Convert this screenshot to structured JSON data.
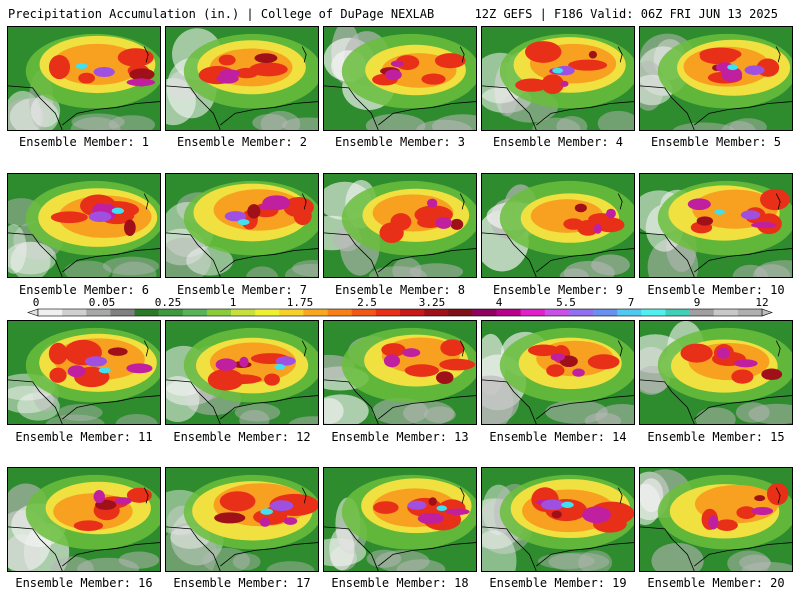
{
  "header": {
    "left_title": "Precipitation Accumulation (in.) | College of DuPage NEXLAB",
    "right_title": "12Z GEFS | F186 Valid: 06Z FRI JUN 13 2025"
  },
  "panels": [
    {
      "caption": "Ensemble Member: 1",
      "intensity": 0.78
    },
    {
      "caption": "Ensemble Member: 2",
      "intensity": 0.62
    },
    {
      "caption": "Ensemble Member: 3",
      "intensity": 0.45
    },
    {
      "caption": "Ensemble Member: 4",
      "intensity": 0.7
    },
    {
      "caption": "Ensemble Member: 5",
      "intensity": 0.72
    },
    {
      "caption": "Ensemble Member: 6",
      "intensity": 0.85
    },
    {
      "caption": "Ensemble Member: 7",
      "intensity": 0.8
    },
    {
      "caption": "Ensemble Member: 8",
      "intensity": 0.58
    },
    {
      "caption": "Ensemble Member: 9",
      "intensity": 0.4
    },
    {
      "caption": "Ensemble Member: 10",
      "intensity": 0.68
    },
    {
      "caption": "Ensemble Member: 11",
      "intensity": 0.82
    },
    {
      "caption": "Ensemble Member: 12",
      "intensity": 0.7
    },
    {
      "caption": "Ensemble Member: 13",
      "intensity": 0.52
    },
    {
      "caption": "Ensemble Member: 14",
      "intensity": 0.5
    },
    {
      "caption": "Ensemble Member: 15",
      "intensity": 0.58
    },
    {
      "caption": "Ensemble Member: 16",
      "intensity": 0.55
    },
    {
      "caption": "Ensemble Member: 17",
      "intensity": 0.88
    },
    {
      "caption": "Ensemble Member: 18",
      "intensity": 0.66
    },
    {
      "caption": "Ensemble Member: 19",
      "intensity": 0.86
    },
    {
      "caption": "Ensemble Member: 20",
      "intensity": 0.64
    }
  ],
  "colorbar": {
    "tick_labels": [
      "0",
      "0.05",
      "0.25",
      "1",
      "1.75",
      "2.5",
      "3.25",
      "4",
      "5.5",
      "7",
      "9",
      "12"
    ],
    "colors": [
      "#f0f0f0",
      "#d0d0d0",
      "#a8a8a8",
      "#808080",
      "#2a7a2a",
      "#3e9a3e",
      "#58b458",
      "#8ccc3c",
      "#c8e03c",
      "#f0f032",
      "#f8d02a",
      "#f8a820",
      "#f88018",
      "#f05818",
      "#e83018",
      "#c81818",
      "#a01018",
      "#801018",
      "#900060",
      "#b8008c",
      "#e020c8",
      "#c850e8",
      "#9070f0",
      "#6890f0",
      "#50c8f0",
      "#50f0f0",
      "#40d0b8",
      "#a0a0a0",
      "#c8c8c8",
      "#b0b0b0"
    ],
    "scale_colors": {
      "white": "#f4f4f4",
      "gray": "#b8b8b8",
      "green": "#2e8b2e",
      "ltgreen": "#6abe3c",
      "yellow": "#f0e040",
      "orange": "#f8a020",
      "red": "#e83018",
      "darkred": "#a01018",
      "magenta": "#c020a0",
      "purple": "#a050e0",
      "cyan": "#40e0f0"
    }
  }
}
